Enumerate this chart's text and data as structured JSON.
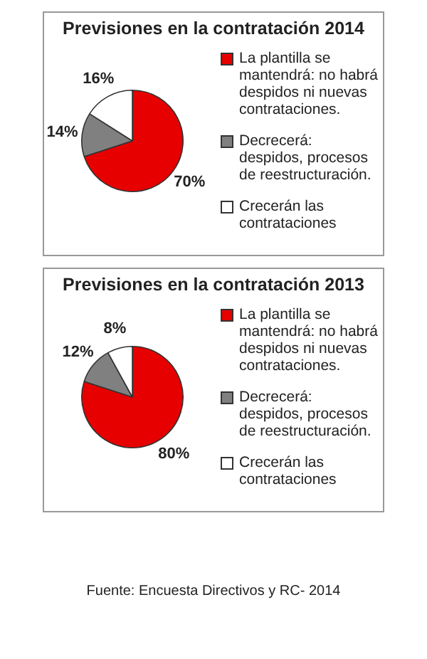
{
  "chart_data": [
    {
      "type": "pie",
      "title": "Previsiones en la contratación 2014",
      "categories": [
        "La plantilla se mantendrá: no habrá despidos ni nuevas contrataciones.",
        "Decrecerá: despidos, procesos de reestructuración.",
        "Crecerán las contrataciones"
      ],
      "values": [
        70,
        14,
        16
      ],
      "value_labels": [
        "70%",
        "14%",
        "16%"
      ],
      "colors": [
        "#e60000",
        "#808080",
        "#ffffff"
      ],
      "legend": "right"
    },
    {
      "type": "pie",
      "title": "Previsiones en la contratación 2013",
      "categories": [
        "La plantilla se mantendrá: no habrá despidos ni nuevas contrataciones.",
        "Decrecerá: despidos, procesos de reestructuración.",
        "Crecerán las contrataciones"
      ],
      "values": [
        80,
        12,
        8
      ],
      "value_labels": [
        "80%",
        "12%",
        "8%"
      ],
      "colors": [
        "#e60000",
        "#808080",
        "#ffffff"
      ],
      "legend": "right",
      "annotations": [
        "Fuente: Encuesta Directivos y RC- 2014"
      ]
    }
  ]
}
